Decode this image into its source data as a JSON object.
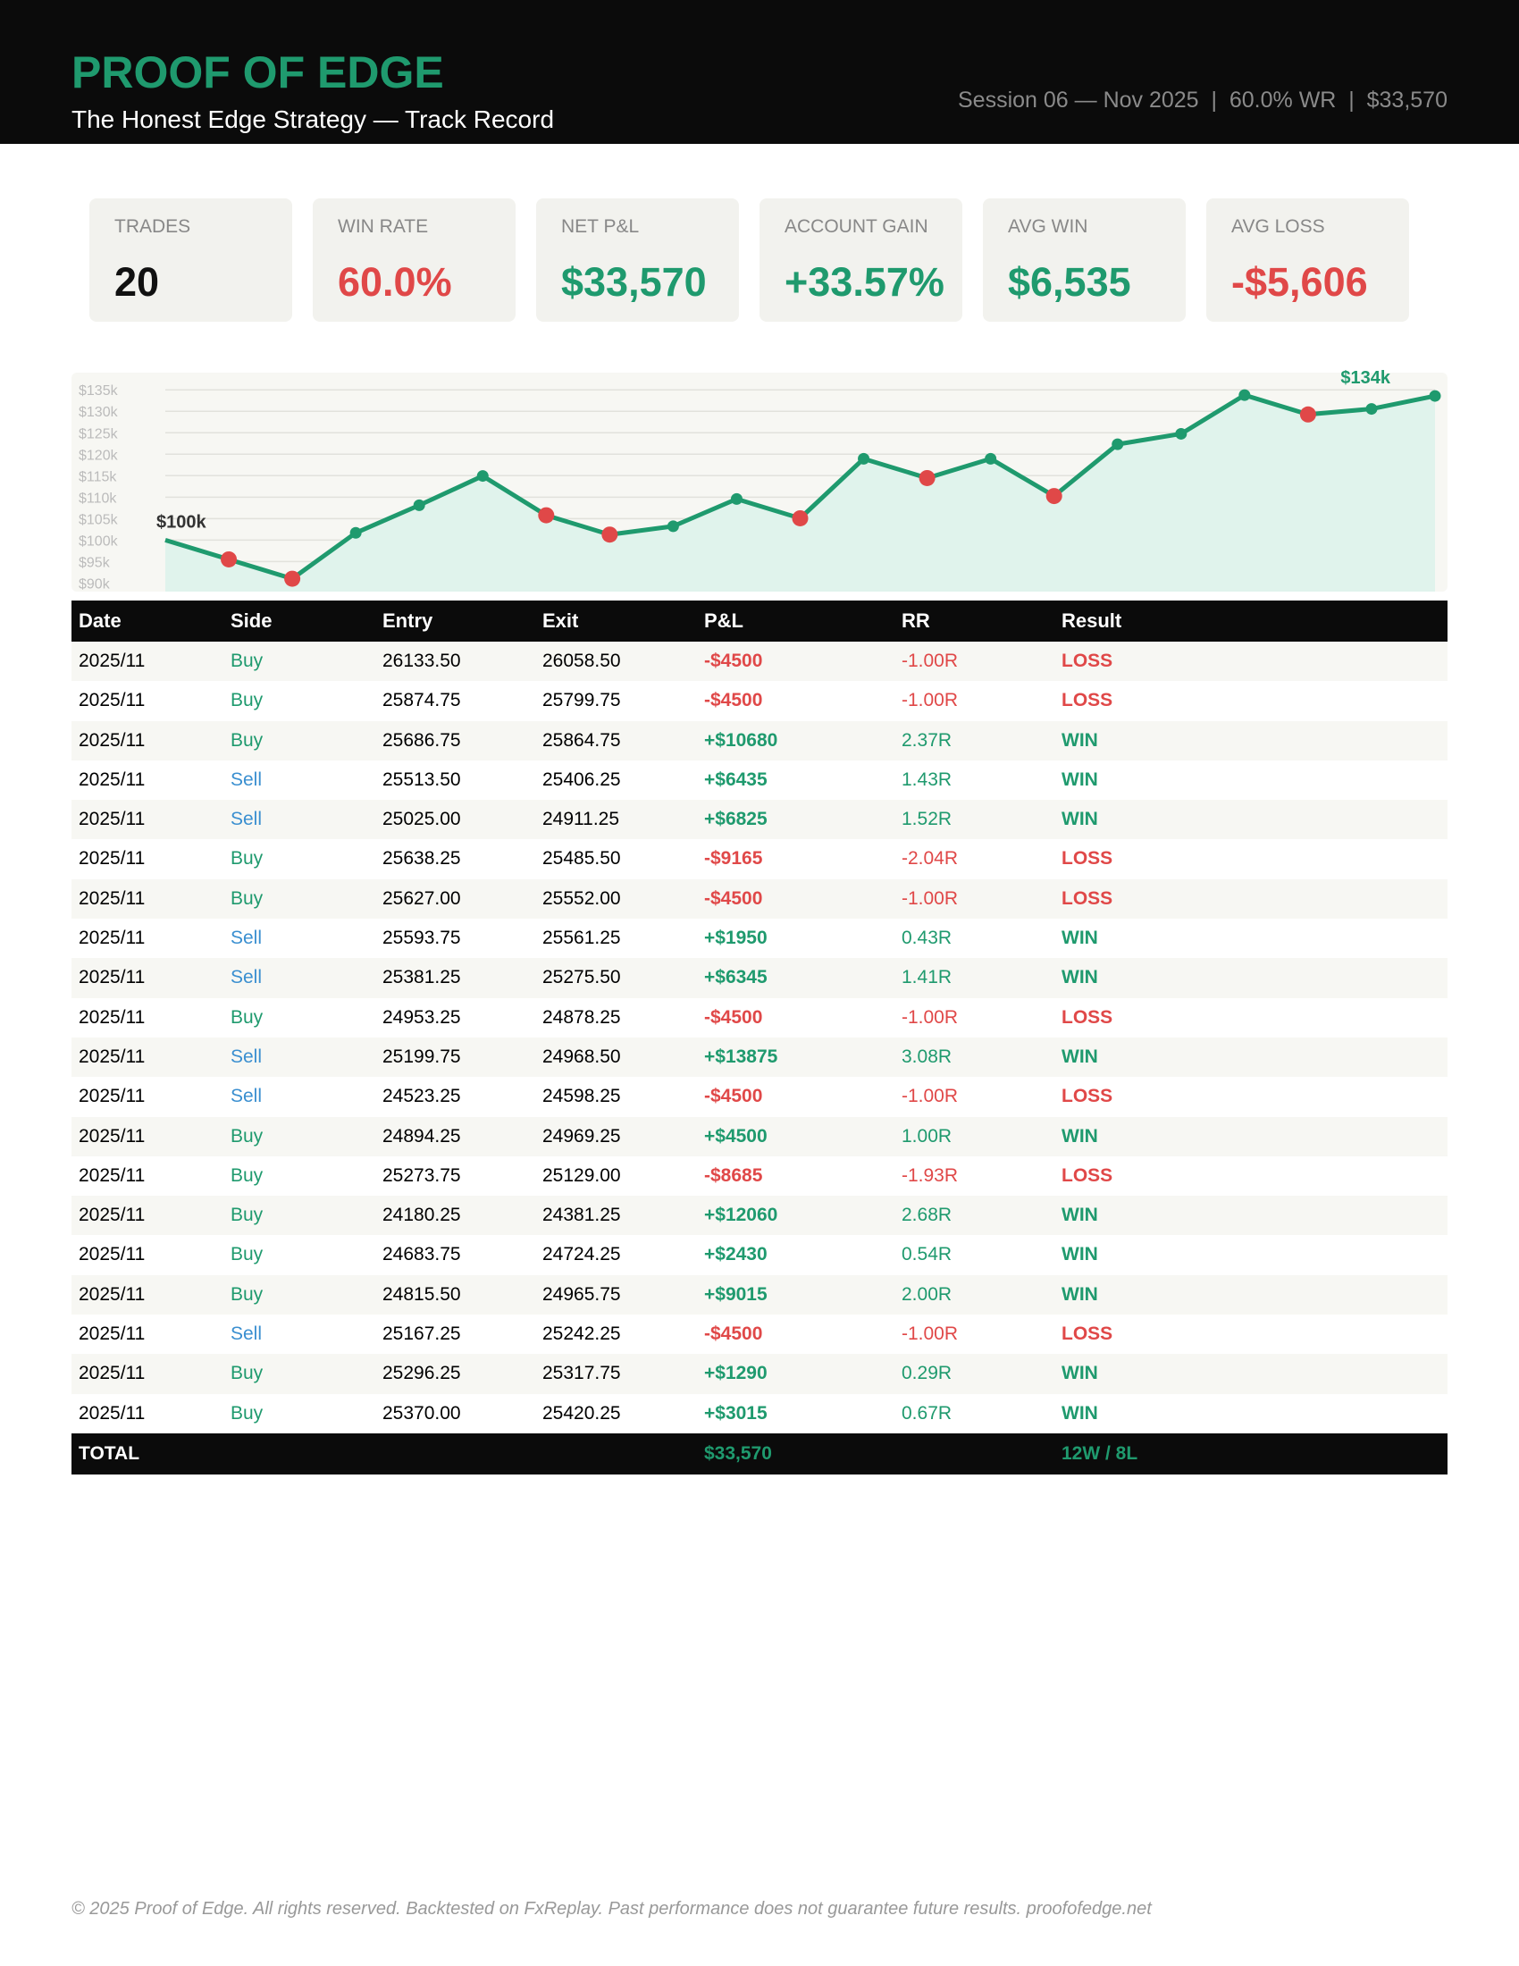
{
  "header": {
    "title": "PROOF OF EDGE",
    "subtitle": "The Honest Edge Strategy — Track Record",
    "meta": "Session 06 — Nov 2025  |  60.0% WR  |  $33,570"
  },
  "stats": [
    {
      "label": "TRADES",
      "value": "20",
      "color": "#111111"
    },
    {
      "label": "WIN RATE",
      "value": "60.0%",
      "color": "#e04848"
    },
    {
      "label": "NET P&L",
      "value": "$33,570",
      "color": "#1f9a6e"
    },
    {
      "label": "ACCOUNT GAIN",
      "value": "+33.57%",
      "color": "#1f9a6e"
    },
    {
      "label": "AVG WIN",
      "value": "$6,535",
      "color": "#1f9a6e"
    },
    {
      "label": "AVG LOSS",
      "value": "-$5,606",
      "color": "#e04848"
    }
  ],
  "chart_data": {
    "type": "line",
    "categories": [
      null,
      null,
      null,
      null,
      null,
      null,
      null,
      null,
      null,
      null,
      null,
      null,
      null,
      null,
      null,
      null,
      null,
      null,
      null,
      null,
      null
    ],
    "series": [
      {
        "color": "#1f9a6e",
        "fill_color": "#e0f3ec",
        "values": [
          100000,
          95500,
          91000,
          101680,
          108115,
          114940,
          105775,
          101275,
          103225,
          109570,
          105070,
          118945,
          114445,
          118945,
          110260,
          122320,
          124750,
          133765,
          129265,
          130555,
          133570
        ],
        "marker_colors": [
          null,
          "#e04848",
          "#e04848",
          "#1f9a6e",
          "#1f9a6e",
          "#1f9a6e",
          "#e04848",
          "#e04848",
          "#1f9a6e",
          "#1f9a6e",
          "#e04848",
          "#1f9a6e",
          "#e04848",
          "#1f9a6e",
          "#e04848",
          "#1f9a6e",
          "#1f9a6e",
          "#1f9a6e",
          "#e04848",
          "#1f9a6e",
          "#1f9a6e"
        ]
      }
    ],
    "ylim": [
      88000,
      139000
    ],
    "yticks": [
      {
        "value": 90000,
        "label": "$90k"
      },
      {
        "value": 95000,
        "label": "$95k"
      },
      {
        "value": 100000,
        "label": "$100k"
      },
      {
        "value": 105000,
        "label": "$105k"
      },
      {
        "value": 110000,
        "label": "$110k"
      },
      {
        "value": 115000,
        "label": "$115k"
      },
      {
        "value": 120000,
        "label": "$120k"
      },
      {
        "value": 125000,
        "label": "$125k"
      },
      {
        "value": 130000,
        "label": "$130k"
      },
      {
        "value": 135000,
        "label": "$135k"
      }
    ],
    "grid": true,
    "annotations": [
      "$100k",
      "$134k"
    ]
  },
  "table": {
    "columns": [
      "Date",
      "Side",
      "Entry",
      "Exit",
      "P&L",
      "RR",
      "Result"
    ],
    "side_colors": {
      "Buy": "#1f9a6e",
      "Sell": "#3a8fd0"
    },
    "result_colors": {
      "WIN": "#1f9a6e",
      "LOSS": "#e04848"
    },
    "rows": [
      [
        "2025/11",
        "Buy",
        "26133.50",
        "26058.50",
        "-$4500",
        "-1.00R",
        "LOSS"
      ],
      [
        "2025/11",
        "Buy",
        "25874.75",
        "25799.75",
        "-$4500",
        "-1.00R",
        "LOSS"
      ],
      [
        "2025/11",
        "Buy",
        "25686.75",
        "25864.75",
        "+$10680",
        "2.37R",
        "WIN"
      ],
      [
        "2025/11",
        "Sell",
        "25513.50",
        "25406.25",
        "+$6435",
        "1.43R",
        "WIN"
      ],
      [
        "2025/11",
        "Sell",
        "25025.00",
        "24911.25",
        "+$6825",
        "1.52R",
        "WIN"
      ],
      [
        "2025/11",
        "Buy",
        "25638.25",
        "25485.50",
        "-$9165",
        "-2.04R",
        "LOSS"
      ],
      [
        "2025/11",
        "Buy",
        "25627.00",
        "25552.00",
        "-$4500",
        "-1.00R",
        "LOSS"
      ],
      [
        "2025/11",
        "Sell",
        "25593.75",
        "25561.25",
        "+$1950",
        "0.43R",
        "WIN"
      ],
      [
        "2025/11",
        "Sell",
        "25381.25",
        "25275.50",
        "+$6345",
        "1.41R",
        "WIN"
      ],
      [
        "2025/11",
        "Buy",
        "24953.25",
        "24878.25",
        "-$4500",
        "-1.00R",
        "LOSS"
      ],
      [
        "2025/11",
        "Sell",
        "25199.75",
        "24968.50",
        "+$13875",
        "3.08R",
        "WIN"
      ],
      [
        "2025/11",
        "Sell",
        "24523.25",
        "24598.25",
        "-$4500",
        "-1.00R",
        "LOSS"
      ],
      [
        "2025/11",
        "Buy",
        "24894.25",
        "24969.25",
        "+$4500",
        "1.00R",
        "WIN"
      ],
      [
        "2025/11",
        "Buy",
        "25273.75",
        "25129.00",
        "-$8685",
        "-1.93R",
        "LOSS"
      ],
      [
        "2025/11",
        "Buy",
        "24180.25",
        "24381.25",
        "+$12060",
        "2.68R",
        "WIN"
      ],
      [
        "2025/11",
        "Buy",
        "24683.75",
        "24724.25",
        "+$2430",
        "0.54R",
        "WIN"
      ],
      [
        "2025/11",
        "Buy",
        "24815.50",
        "24965.75",
        "+$9015",
        "2.00R",
        "WIN"
      ],
      [
        "2025/11",
        "Sell",
        "25167.25",
        "25242.25",
        "-$4500",
        "-1.00R",
        "LOSS"
      ],
      [
        "2025/11",
        "Buy",
        "25296.25",
        "25317.75",
        "+$1290",
        "0.29R",
        "WIN"
      ],
      [
        "2025/11",
        "Buy",
        "25370.00",
        "25420.25",
        "+$3015",
        "0.67R",
        "WIN"
      ]
    ],
    "total": {
      "label": "TOTAL",
      "pnl": "$33,570",
      "record": "12W / 8L"
    }
  },
  "footer": "© 2025 Proof of Edge. All rights reserved. Backtested on FxReplay. Past performance does not guarantee future results. proofofedge.net"
}
